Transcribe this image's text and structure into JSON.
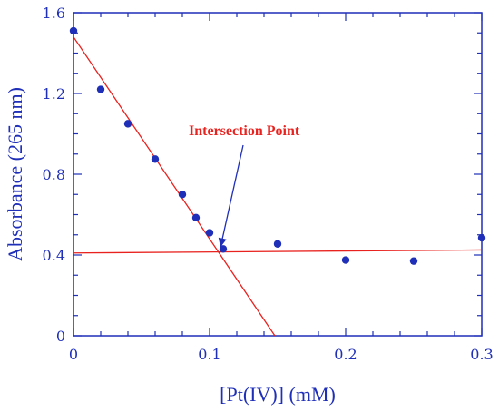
{
  "chart_data": {
    "type": "scatter",
    "xlabel": "[Pt(IV)] (mM)",
    "ylabel": "Absorbance (265 nm)",
    "xlim": [
      0,
      0.3
    ],
    "ylim": [
      0,
      1.6
    ],
    "x_ticks": [
      "0",
      "0.1",
      "0.2",
      "0.3"
    ],
    "y_ticks": [
      "0",
      "0.4",
      "0.8",
      "1.2",
      "1.6"
    ],
    "grid": false,
    "colors": {
      "axis": "#1f2fb8",
      "points": "#1f2fb8",
      "fit_lines": "#e8231f",
      "annotation": "#e8231f",
      "arrow": "#1f2fb8"
    },
    "series": [
      {
        "x": [
          0,
          0.02,
          0.04,
          0.06,
          0.08,
          0.09,
          0.1,
          0.11,
          0.15,
          0.2,
          0.25,
          0.3
        ],
        "y": [
          1.51,
          1.22,
          1.05,
          0.875,
          0.7,
          0.585,
          0.51,
          0.43,
          0.455,
          0.375,
          0.37,
          0.485
        ]
      }
    ],
    "fit_lines": [
      {
        "x": [
          0,
          0.148
        ],
        "y": [
          1.48,
          0
        ]
      },
      {
        "x": [
          0,
          0.3
        ],
        "y": [
          0.41,
          0.425
        ]
      }
    ],
    "annotations": [
      {
        "text": "Intersection Point",
        "arrow_to": [
          0.108,
          0.42
        ]
      }
    ]
  }
}
